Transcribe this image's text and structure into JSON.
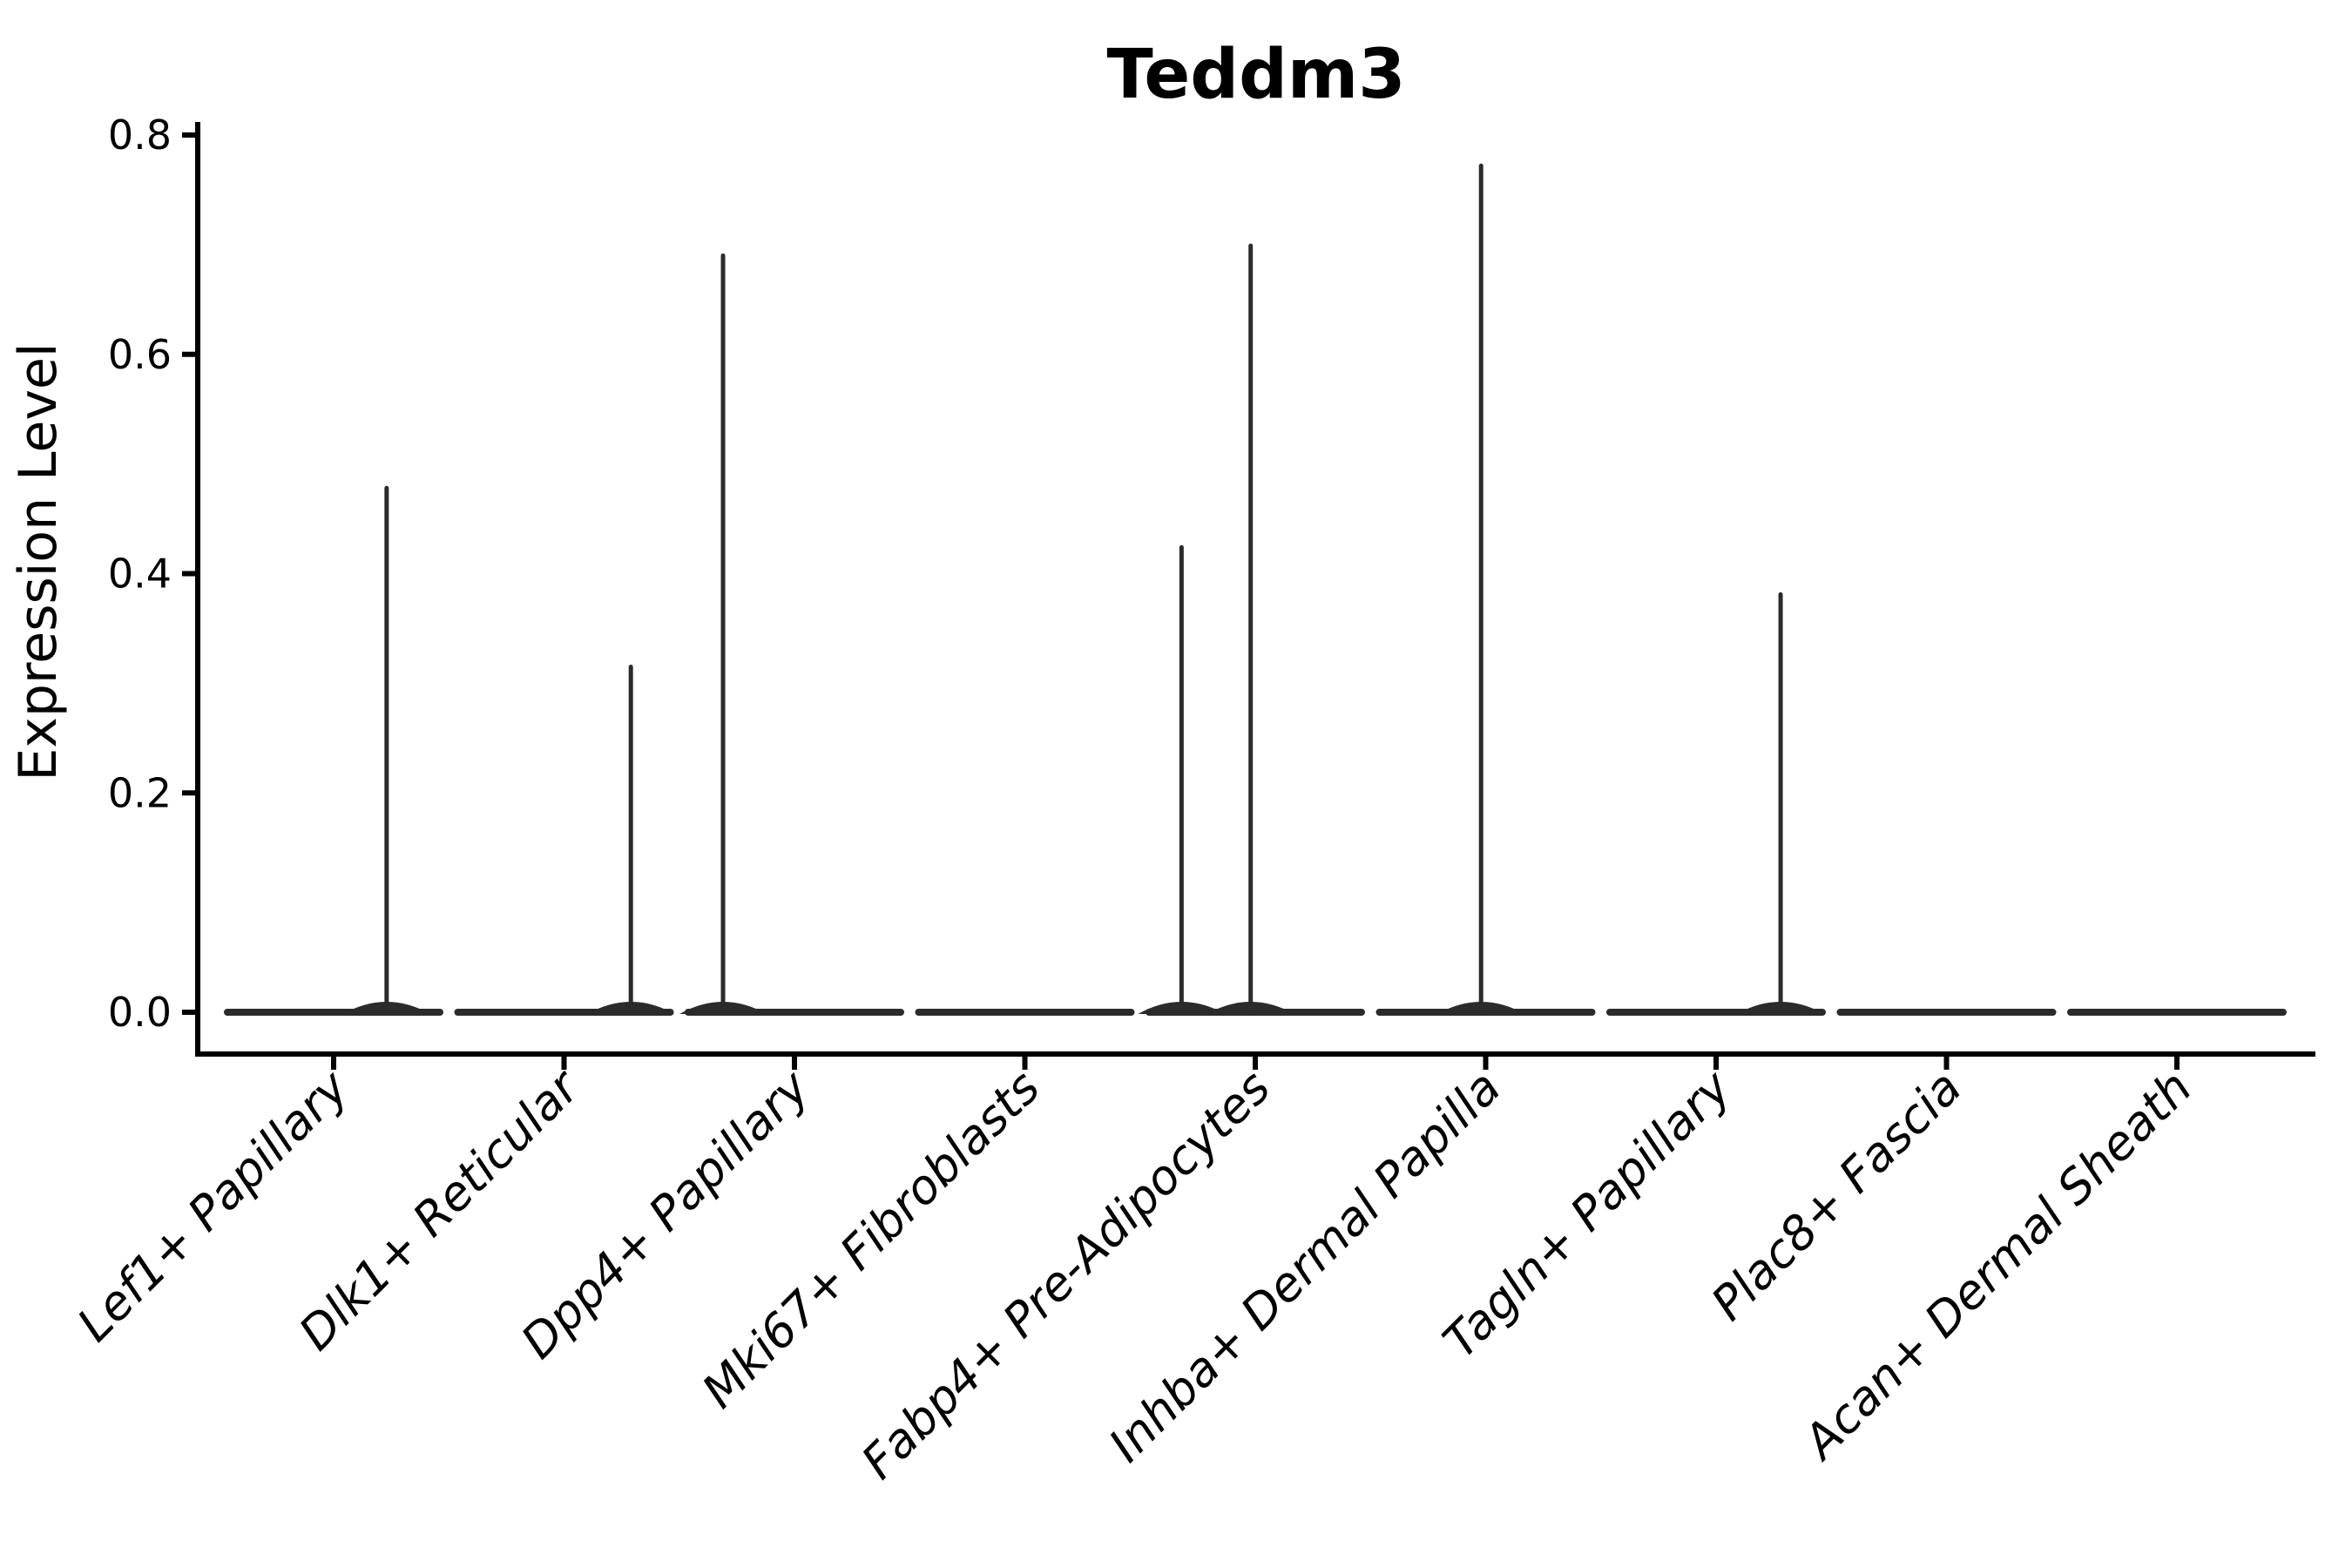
{
  "figure": {
    "background_color": "#ffffff"
  },
  "colors": {
    "violin": "#2b2b2b",
    "axis": "#000000",
    "text": "#000000"
  },
  "chart_data": {
    "type": "violin",
    "title": "Teddm3",
    "xlabel": "",
    "ylabel": "Expression Level",
    "ylim": [
      0,
      0.8
    ],
    "yticks": [
      0.0,
      0.2,
      0.4,
      0.6,
      0.8
    ],
    "ytick_labels": [
      "0.0",
      "0.2",
      "0.4",
      "0.6",
      "0.8"
    ],
    "grid": false,
    "legend": null,
    "categories": [
      "Lef1+ Papillary",
      "Dlk1+ Reticular",
      "Dpp4+ Papillary",
      "Mki67+ Fibroblasts",
      "Fabp4+ Pre-Adipocytes",
      "Inhba+ Dermal Papilla",
      "Tagln+ Papillary",
      "Plac8+ Fascia",
      "Acan+ Dermal Sheath"
    ],
    "series": [
      {
        "name": "Lef1+ Papillary",
        "baseline_value": 0.0,
        "max_expression": 0.48,
        "spikes": [
          {
            "value": 0.48,
            "offset_frac": 0.23
          }
        ]
      },
      {
        "name": "Dlk1+ Reticular",
        "baseline_value": 0.0,
        "max_expression": 0.317,
        "spikes": [
          {
            "value": 0.317,
            "offset_frac": 0.29
          }
        ]
      },
      {
        "name": "Dpp4+ Papillary",
        "baseline_value": 0.0,
        "max_expression": 0.692,
        "spikes": [
          {
            "value": 0.692,
            "offset_frac": -0.31
          }
        ]
      },
      {
        "name": "Mki67+ Fibroblasts",
        "baseline_value": 0.0,
        "max_expression": 0.0,
        "spikes": []
      },
      {
        "name": "Fabp4+ Pre-Adipocytes",
        "baseline_value": 0.0,
        "max_expression": 0.701,
        "spikes": [
          {
            "value": 0.426,
            "offset_frac": -0.32
          },
          {
            "value": 0.701,
            "offset_frac": -0.02
          }
        ]
      },
      {
        "name": "Inhba+ Dermal Papilla",
        "baseline_value": 0.0,
        "max_expression": 0.774,
        "spikes": [
          {
            "value": 0.774,
            "offset_frac": -0.02
          }
        ]
      },
      {
        "name": "Tagln+ Papillary",
        "baseline_value": 0.0,
        "max_expression": 0.383,
        "spikes": [
          {
            "value": 0.383,
            "offset_frac": 0.28
          }
        ]
      },
      {
        "name": "Plac8+ Fascia",
        "baseline_value": 0.0,
        "max_expression": 0.0,
        "spikes": []
      },
      {
        "name": "Acan+ Dermal Sheath",
        "baseline_value": 0.0,
        "max_expression": 0.0,
        "spikes": []
      }
    ]
  }
}
